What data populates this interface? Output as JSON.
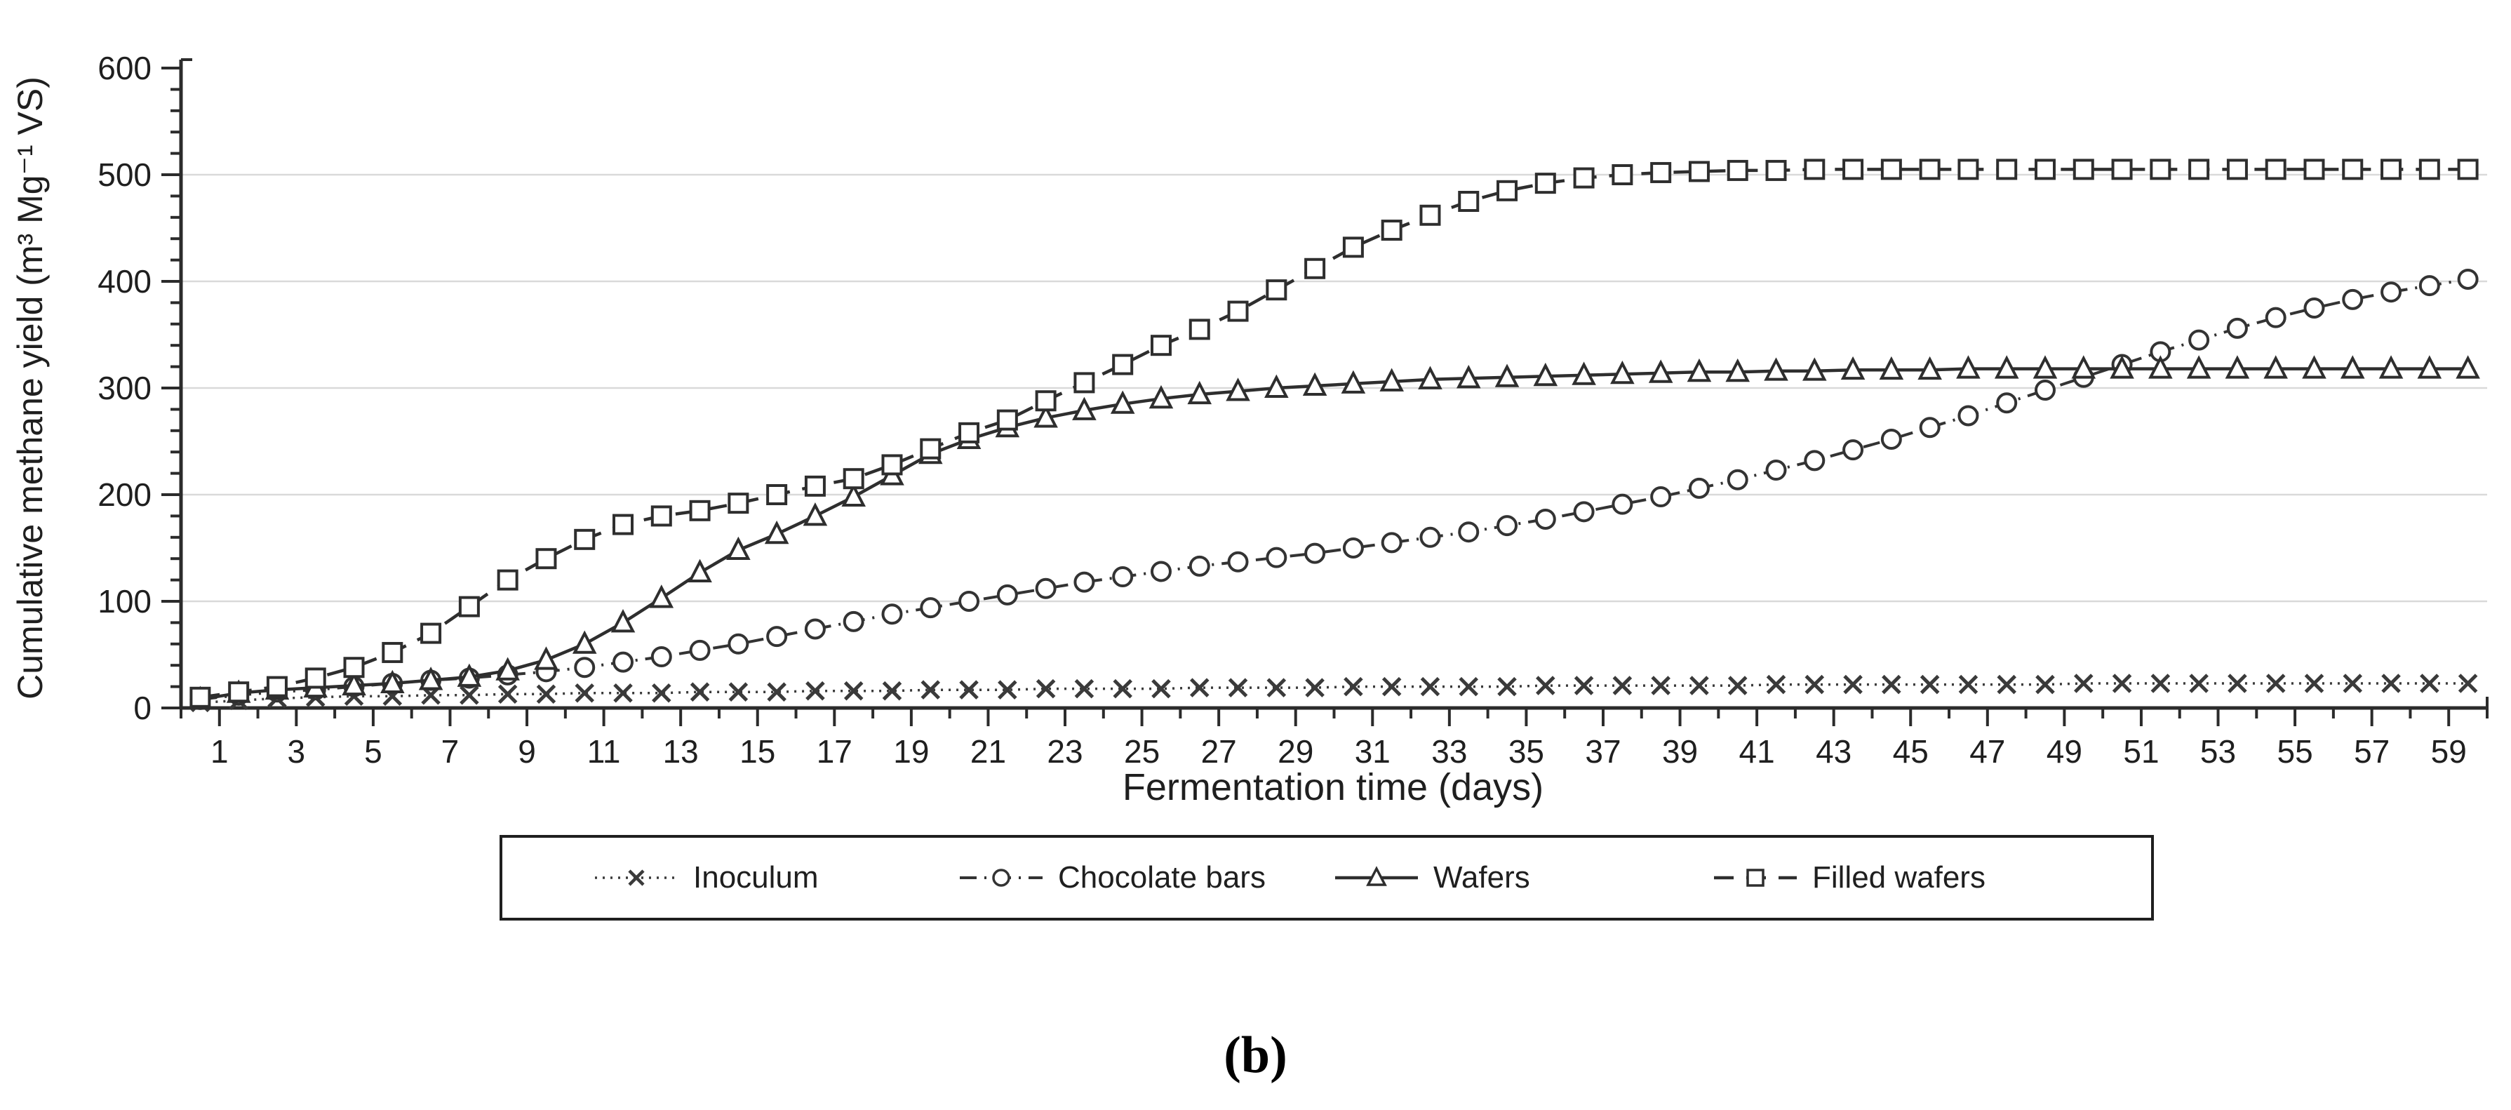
{
  "figure": {
    "background": "#ffffff",
    "caption": "(b)"
  },
  "chart_data": {
    "type": "line",
    "title": "",
    "xlabel": "Fermentation time (days)",
    "ylabel": "Cumulative methane yield (m³ Mg⁻¹ VS)",
    "xlim": [
      0,
      60
    ],
    "ylim": [
      0,
      600
    ],
    "grid": "horizontal",
    "gridline_values": [
      100,
      200,
      300,
      400,
      500
    ],
    "gridline_color": "#d9d9d9",
    "axis_color": "#2b2b2b",
    "y_major_ticks": [
      0,
      100,
      200,
      300,
      400,
      500,
      600
    ],
    "y_minor_tick_step": 20,
    "x_minor_tick_step": 1,
    "x_major_tick_labels": [
      1,
      3,
      5,
      7,
      9,
      11,
      13,
      15,
      17,
      19,
      21,
      23,
      25,
      27,
      29,
      31,
      33,
      35,
      37,
      39,
      41,
      43,
      45,
      47,
      49,
      51,
      53,
      55,
      57,
      59
    ],
    "legend_position": "bottom",
    "x": [
      0.5,
      1.5,
      2.5,
      3.5,
      4.5,
      5.5,
      6.5,
      7.5,
      8.5,
      9.5,
      10.5,
      11.5,
      12.5,
      13.5,
      14.5,
      15.5,
      16.5,
      17.5,
      18.5,
      19.5,
      20.5,
      21.5,
      22.5,
      23.5,
      24.5,
      25.5,
      26.5,
      27.5,
      28.5,
      29.5,
      30.5,
      31.5,
      32.5,
      33.5,
      34.5,
      35.5,
      36.5,
      37.5,
      38.5,
      39.5,
      40.5,
      41.5,
      42.5,
      43.5,
      44.5,
      45.5,
      46.5,
      47.5,
      48.5,
      49.5,
      50.5,
      51.5,
      52.5,
      53.5,
      54.5,
      55.5,
      56.5,
      57.5,
      58.5,
      59.5
    ],
    "series": [
      {
        "name": "Inoculum",
        "marker": "x",
        "line": "dotted",
        "color": "#3a3a3a",
        "values": [
          5,
          7,
          9,
          10,
          11,
          11,
          12,
          12,
          13,
          13,
          14,
          14,
          14,
          15,
          15,
          15,
          16,
          16,
          16,
          17,
          17,
          17,
          18,
          18,
          18,
          18,
          19,
          19,
          19,
          19,
          20,
          20,
          20,
          20,
          20,
          21,
          21,
          21,
          21,
          21,
          21,
          22,
          22,
          22,
          22,
          22,
          22,
          22,
          22,
          23,
          23,
          23,
          23,
          23,
          23,
          23,
          23,
          23,
          23,
          23
        ]
      },
      {
        "name": "Chocolate bars",
        "marker": "circle",
        "line": "dash-dot",
        "color": "#333333",
        "values": [
          8,
          12,
          15,
          17,
          20,
          23,
          26,
          28,
          31,
          34,
          38,
          43,
          48,
          54,
          60,
          67,
          74,
          81,
          88,
          94,
          100,
          106,
          112,
          118,
          123,
          128,
          133,
          137,
          141,
          145,
          150,
          155,
          160,
          165,
          171,
          177,
          184,
          191,
          198,
          206,
          214,
          223,
          232,
          242,
          252,
          263,
          274,
          286,
          298,
          310,
          322,
          334,
          345,
          356,
          366,
          375,
          383,
          390,
          396,
          402
        ]
      },
      {
        "name": "Wafers",
        "marker": "triangle",
        "line": "solid",
        "color": "#2e2e2e",
        "values": [
          8,
          14,
          17,
          19,
          21,
          23,
          26,
          29,
          35,
          45,
          60,
          80,
          103,
          127,
          148,
          163,
          180,
          198,
          218,
          238,
          252,
          263,
          272,
          279,
          285,
          290,
          294,
          297,
          300,
          302,
          304,
          306,
          308,
          309,
          310,
          311,
          312,
          313,
          314,
          315,
          315,
          316,
          316,
          317,
          317,
          317,
          318,
          318,
          318,
          318,
          318,
          318,
          318,
          318,
          318,
          318,
          318,
          318,
          318,
          318
        ]
      },
      {
        "name": "Filled wafers",
        "marker": "square",
        "line": "dashed",
        "color": "#2e2e2e",
        "values": [
          10,
          15,
          20,
          28,
          38,
          52,
          70,
          95,
          120,
          140,
          158,
          172,
          180,
          185,
          192,
          200,
          208,
          215,
          228,
          243,
          258,
          270,
          288,
          305,
          322,
          340,
          355,
          372,
          392,
          412,
          432,
          448,
          462,
          475,
          485,
          492,
          497,
          500,
          502,
          503,
          504,
          504,
          505,
          505,
          505,
          505,
          505,
          505,
          505,
          505,
          505,
          505,
          505,
          505,
          505,
          505,
          505,
          505,
          505,
          505
        ]
      }
    ]
  }
}
